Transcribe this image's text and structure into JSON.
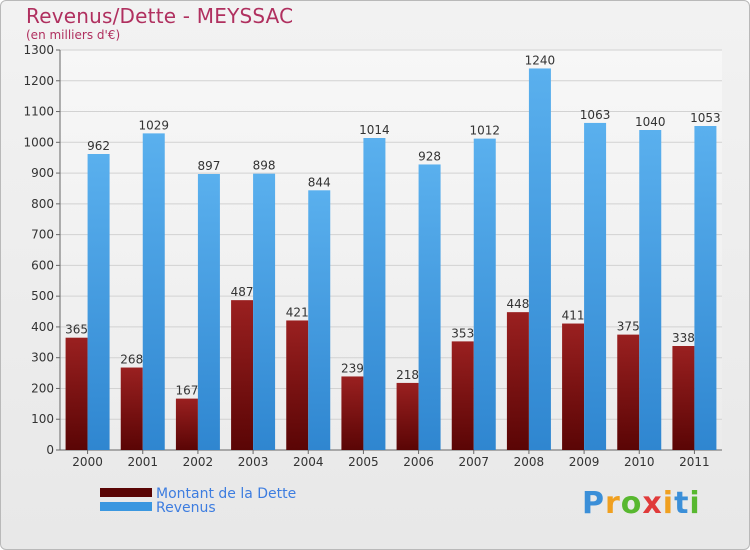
{
  "chart_data": {
    "type": "bar",
    "title": "Revenus/Dette - MEYSSAC",
    "subtitle": "(en milliers d'€)",
    "categories": [
      "2000",
      "2001",
      "2002",
      "2003",
      "2004",
      "2005",
      "2006",
      "2007",
      "2008",
      "2009",
      "2010",
      "2011"
    ],
    "series": [
      {
        "name": "Montant de la Dette",
        "values": [
          365,
          268,
          167,
          487,
          421,
          239,
          218,
          353,
          448,
          411,
          375,
          338
        ],
        "color": "#7a0c0c"
      },
      {
        "name": "Revenus",
        "values": [
          962,
          1029,
          897,
          898,
          844,
          1014,
          928,
          1012,
          1240,
          1063,
          1040,
          1053
        ],
        "color": "#4ea6e8"
      }
    ],
    "ylim": [
      0,
      1300
    ],
    "yticks": [
      0,
      100,
      200,
      300,
      400,
      500,
      600,
      700,
      800,
      900,
      1000,
      1100,
      1200,
      1300
    ],
    "grid": true,
    "legend_position": "bottom-left"
  },
  "logo": {
    "letters": [
      "P",
      "r",
      "o",
      "x",
      "i",
      "t",
      "i"
    ],
    "colors": [
      "#3b8fd8",
      "#f0a020",
      "#58b830",
      "#e03a3a",
      "#f0a020",
      "#3b8fd8",
      "#58b830"
    ]
  }
}
